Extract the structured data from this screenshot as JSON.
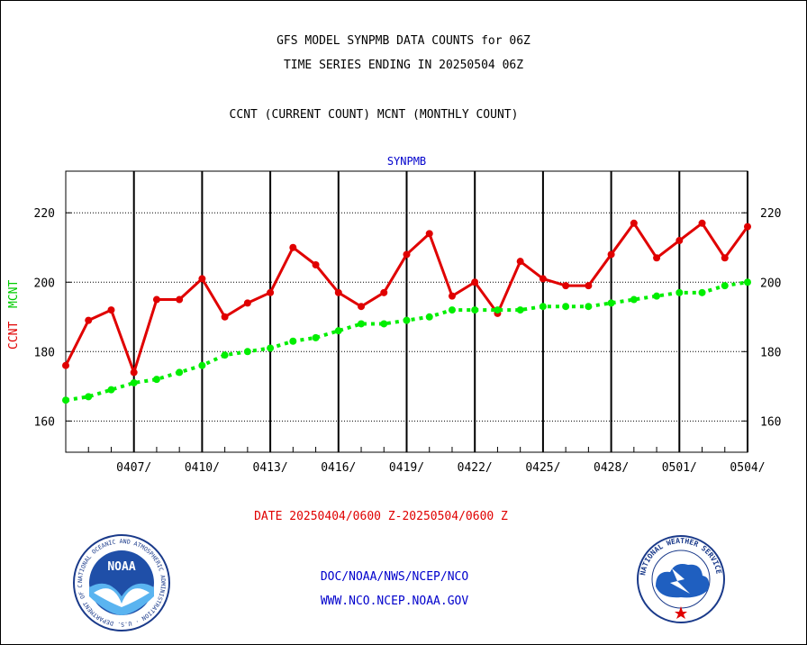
{
  "header": {
    "title_line1": "GFS MODEL SYNPMB DATA COUNTS for 06Z",
    "title_line2": "TIME SERIES ENDING IN 20250504 06Z",
    "title_line3": "CCNT (CURRENT COUNT) MCNT (MONTHLY COUNT)"
  },
  "chart_data": {
    "type": "line",
    "title": "SYNPMB",
    "ylabel_ccnt": "CCNT",
    "ylabel_mcnt": "MCNT",
    "xlabel": "DATE 20250404/0600 Z-20250504/0600 Z",
    "ylim": [
      151,
      232
    ],
    "yticks": [
      160,
      180,
      200,
      220
    ],
    "x": [
      "0404",
      "0405",
      "0406",
      "0407",
      "0408",
      "0409",
      "0410",
      "0411",
      "0412",
      "0413",
      "0414",
      "0415",
      "0416",
      "0417",
      "0418",
      "0419",
      "0420",
      "0421",
      "0422",
      "0423",
      "0424",
      "0425",
      "0426",
      "0427",
      "0428",
      "0429",
      "0430",
      "0501",
      "0502",
      "0503",
      "0504"
    ],
    "xtick_labels": [
      "0407/",
      "0410/",
      "0413/",
      "0416/",
      "0419/",
      "0422/",
      "0425/",
      "0428/",
      "0501/",
      "0504/"
    ],
    "grid": true,
    "series": [
      {
        "name": "CCNT",
        "color": "#e00000",
        "values": [
          176,
          189,
          192,
          174,
          195,
          195,
          201,
          190,
          194,
          197,
          210,
          205,
          197,
          193,
          197,
          208,
          214,
          196,
          200,
          191,
          206,
          201,
          199,
          199,
          208,
          217,
          207,
          212,
          217,
          207,
          216
        ]
      },
      {
        "name": "MCNT",
        "color": "#00ee00",
        "values": [
          166,
          167,
          169,
          171,
          172,
          174,
          176,
          179,
          180,
          181,
          183,
          184,
          186,
          188,
          188,
          189,
          190,
          192,
          192,
          192,
          192,
          193,
          193,
          193,
          194,
          195,
          196,
          197,
          197,
          199,
          200
        ]
      }
    ]
  },
  "footer": {
    "line1": "DOC/NOAA/NWS/NCEP/NCO",
    "line2": "WWW.NCO.NCEP.NOAA.GOV"
  },
  "logos": {
    "noaa_text": "NOAA",
    "noaa_ring_text": "NATIONAL OCEANIC AND ATMOSPHERIC ADMINISTRATION · U.S. DEPARTMENT OF COMMERCE",
    "nws_ring_text": "NATIONAL WEATHER SERVICE"
  },
  "colors": {
    "ccnt": "#e00000",
    "mcnt": "#00ee00",
    "link": "#0000cc"
  }
}
